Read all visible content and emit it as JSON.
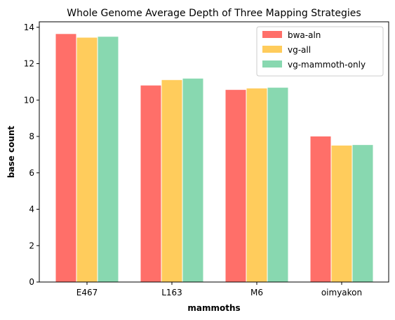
{
  "chart_data": {
    "type": "bar",
    "title": "Whole Genome Average Depth of Three Mapping Strategies",
    "xlabel": "mammoths",
    "ylabel": "base count",
    "categories": [
      "E467",
      "L163",
      "M6",
      "oimyakon"
    ],
    "series": [
      {
        "name": "bwa-aln",
        "color": "#ff6f69",
        "values": [
          13.65,
          10.82,
          10.58,
          8.02
        ]
      },
      {
        "name": "vg-all",
        "color": "#ffcc5c",
        "values": [
          13.45,
          11.12,
          10.66,
          7.52
        ]
      },
      {
        "name": "vg-mammoth-only",
        "color": "#88d8b0",
        "values": [
          13.5,
          11.2,
          10.7,
          7.55
        ]
      }
    ],
    "ylim": [
      0,
      14.3
    ],
    "yticks": [
      0,
      2,
      4,
      6,
      8,
      10,
      12,
      14
    ],
    "grid": false,
    "legend": "top-right"
  }
}
